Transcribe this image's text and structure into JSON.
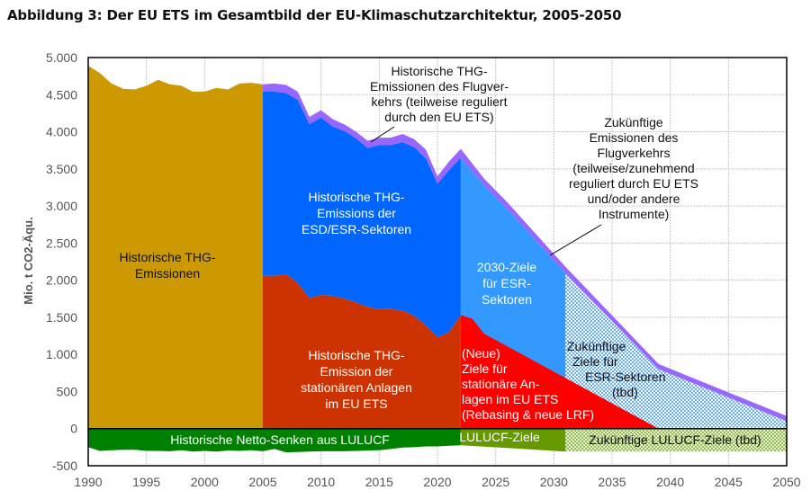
{
  "chart_data": {
    "type": "area",
    "title": "Abbildung 3: Der EU ETS im Gesamtbild der EU-Klimaschutzarchitektur, 2005-2050",
    "xlabel": "",
    "ylabel": "Mio. t CO2-Äqu.",
    "xlim": [
      1990,
      2050
    ],
    "ylim": [
      -500,
      5000
    ],
    "grid": true,
    "x_ticks": [
      "1990",
      "1995",
      "2000",
      "2005",
      "2010",
      "2015",
      "2020",
      "2025",
      "2030",
      "2035",
      "2040",
      "2045",
      "2050"
    ],
    "y_ticks": [
      {
        "v": 5000,
        "label": "5.000"
      },
      {
        "v": 4500,
        "label": "4.500"
      },
      {
        "v": 4000,
        "label": "4.000"
      },
      {
        "v": 3500,
        "label": "3.500"
      },
      {
        "v": 3000,
        "label": "3.000"
      },
      {
        "v": 2500,
        "label": "2.500"
      },
      {
        "v": 2000,
        "label": "2.000"
      },
      {
        "v": 1500,
        "label": "1.500"
      },
      {
        "v": 1000,
        "label": "1.000"
      },
      {
        "v": 500,
        "label": "500"
      },
      {
        "v": 0,
        "label": "0"
      },
      {
        "v": -500,
        "label": "-500"
      }
    ],
    "colors": {
      "historic_total": "#cc9900",
      "aviation": "#9966ff",
      "esr_historic": "#0066ff",
      "ets_historic": "#cc3300",
      "esr_2030": "#3399ff",
      "ets_targets": "#ff0000",
      "esr_future": "#99ccff",
      "lulucf_historic": "#008000",
      "lulucf_targets": "#669900",
      "lulucf_future": "#c4dc96",
      "grid": "#c8c8c8"
    },
    "series": [
      {
        "name": "Historische THG-Emissionen",
        "key": "historic_total",
        "x": [
          1990,
          1991,
          1992,
          1993,
          1994,
          1995,
          1996,
          1997,
          1998,
          1999,
          2000,
          2001,
          2002,
          2003,
          2004,
          2005
        ],
        "values": [
          4890,
          4790,
          4650,
          4580,
          4570,
          4620,
          4700,
          4640,
          4620,
          4540,
          4540,
          4590,
          4570,
          4650,
          4660,
          4640
        ]
      },
      {
        "name": "Historische THG-Emissionen des Flugverkehrs (teilweise reguliert durch den EU ETS)",
        "key": "aviation_top",
        "x": [
          2005,
          2006,
          2007,
          2008,
          2009,
          2010,
          2011,
          2012,
          2013,
          2014,
          2015,
          2016,
          2017,
          2018,
          2019,
          2020,
          2021,
          2022
        ],
        "values": [
          4640,
          4650,
          4630,
          4540,
          4200,
          4290,
          4170,
          4100,
          4000,
          3880,
          3920,
          3920,
          3970,
          3900,
          3760,
          3400,
          3600,
          3770
        ]
      },
      {
        "name": "Historische THG-Emissions der ESD/ESR-Sektoren",
        "key": "esr_historic_top",
        "x": [
          2005,
          2006,
          2007,
          2008,
          2009,
          2010,
          2011,
          2012,
          2013,
          2014,
          2015,
          2016,
          2017,
          2018,
          2019,
          2020,
          2021,
          2022
        ],
        "values": [
          4540,
          4540,
          4520,
          4430,
          4100,
          4190,
          4070,
          4010,
          3910,
          3780,
          3820,
          3820,
          3860,
          3790,
          3640,
          3300,
          3480,
          3650
        ]
      },
      {
        "name": "Historische THG-Emission der stationären Anlagen im EU ETS",
        "key": "ets_historic",
        "x": [
          2005,
          2006,
          2007,
          2008,
          2009,
          2010,
          2011,
          2012,
          2013,
          2014,
          2015,
          2016,
          2017,
          2018,
          2019,
          2020,
          2021,
          2022
        ],
        "values": [
          2060,
          2060,
          2080,
          1960,
          1760,
          1800,
          1790,
          1750,
          1700,
          1640,
          1610,
          1610,
          1590,
          1520,
          1390,
          1230,
          1300,
          1530
        ]
      },
      {
        "name": "Zukünftige Emissionen des Flugverkehrs (teilweise/zunehmend reguliert durch EU ETS und/oder andere Instrumente)",
        "key": "aviation_future_top",
        "x": [
          2022,
          2024,
          2026,
          2031,
          2039,
          2050
        ],
        "values": [
          3770,
          3370,
          3050,
          2180,
          870,
          170
        ]
      },
      {
        "name": "2030-Ziele für ESR-Sektoren / Zukünftige Ziele für ESR-Sektoren (tbd)",
        "key": "esr_future_top",
        "x": [
          2022,
          2024,
          2026,
          2031,
          2039,
          2050
        ],
        "values": [
          3650,
          3280,
          2960,
          2090,
          800,
          100
        ]
      },
      {
        "name": "(Neue) Ziele für stationäre Anlagen im EU ETS (Rebasing & neue LRF)",
        "key": "ets_targets",
        "x": [
          2022,
          2023,
          2024,
          2039
        ],
        "values": [
          1530,
          1480,
          1280,
          0
        ]
      },
      {
        "name": "Historische Netto-Senken aus LULUCF",
        "key": "lulucf_historic",
        "x": [
          1990,
          1991,
          1992,
          1993,
          1994,
          1995,
          1996,
          1997,
          1998,
          1999,
          2000,
          2001,
          2002,
          2003,
          2004,
          2005,
          2006,
          2007,
          2008,
          2009,
          2010,
          2011,
          2012,
          2013,
          2014,
          2015,
          2016,
          2017,
          2018,
          2019,
          2020,
          2021,
          2022
        ],
        "values": [
          -250,
          -300,
          -290,
          -285,
          -285,
          -300,
          -300,
          -305,
          -290,
          -310,
          -300,
          -310,
          -295,
          -300,
          -290,
          -305,
          -275,
          -320,
          -315,
          -310,
          -305,
          -305,
          -305,
          -300,
          -295,
          -290,
          -275,
          -255,
          -250,
          -240,
          -240,
          -230,
          -225
        ]
      },
      {
        "name": "LULUCF-Ziele",
        "key": "lulucf_targets",
        "x": [
          2022,
          2026,
          2031
        ],
        "values": [
          -225,
          -260,
          -310
        ]
      },
      {
        "name": "Zukünftige LULUCF-Ziele (tbd)",
        "key": "lulucf_future",
        "x": [
          2031,
          2050
        ],
        "values": [
          -310,
          -310
        ]
      }
    ],
    "annotations": [
      {
        "key": "historic_total",
        "lines": [
          "Historische THG-",
          "Emissionen"
        ],
        "color": "#111111"
      },
      {
        "key": "aviation",
        "lines": [
          "Historische THG-",
          "Emissionen des Flugver-",
          "kehrs (teilweise reguliert",
          "durch den EU ETS)"
        ],
        "color": "#111111"
      },
      {
        "key": "esr_historic",
        "lines": [
          "Historische THG-",
          "Emissions der",
          "ESD/ESR-Sektoren"
        ],
        "color": "#ffffff"
      },
      {
        "key": "ets_historic",
        "lines": [
          "Historische THG-",
          "Emission der",
          "stationären Anlagen",
          "im EU ETS"
        ],
        "color": "#ffffff"
      },
      {
        "key": "aviation_future",
        "lines": [
          "Zukünftige",
          "Emissionen des",
          "Flugverkehrs",
          "(teilweise/zunehmend",
          "reguliert durch EU ETS",
          "und/oder andere",
          "Instrumente)"
        ],
        "color": "#111111"
      },
      {
        "key": "esr_2030",
        "lines": [
          "2030-Ziele",
          "für ESR-",
          "Sektoren"
        ],
        "color": "#ffffff"
      },
      {
        "key": "ets_targets",
        "lines": [
          "(Neue)",
          "Ziele für",
          "stationäre An-",
          "lagen im EU ETS",
          "(Rebasing & neue LRF)"
        ],
        "color": "#ffffff"
      },
      {
        "key": "esr_future",
        "lines": [
          "Zukünftige",
          "Ziele für",
          "ESR-Sektoren",
          "(tbd)"
        ],
        "color": "#111111"
      },
      {
        "key": "lulucf_historic",
        "lines": [
          "Historische Netto-Senken aus LULUCF"
        ],
        "color": "#ffffff"
      },
      {
        "key": "lulucf_targets",
        "lines": [
          "LULUCF-Ziele"
        ],
        "color": "#ffffff"
      },
      {
        "key": "lulucf_future",
        "lines": [
          "Zukünftige LULUCF-Ziele (tbd)"
        ],
        "color": "#111111"
      }
    ]
  }
}
